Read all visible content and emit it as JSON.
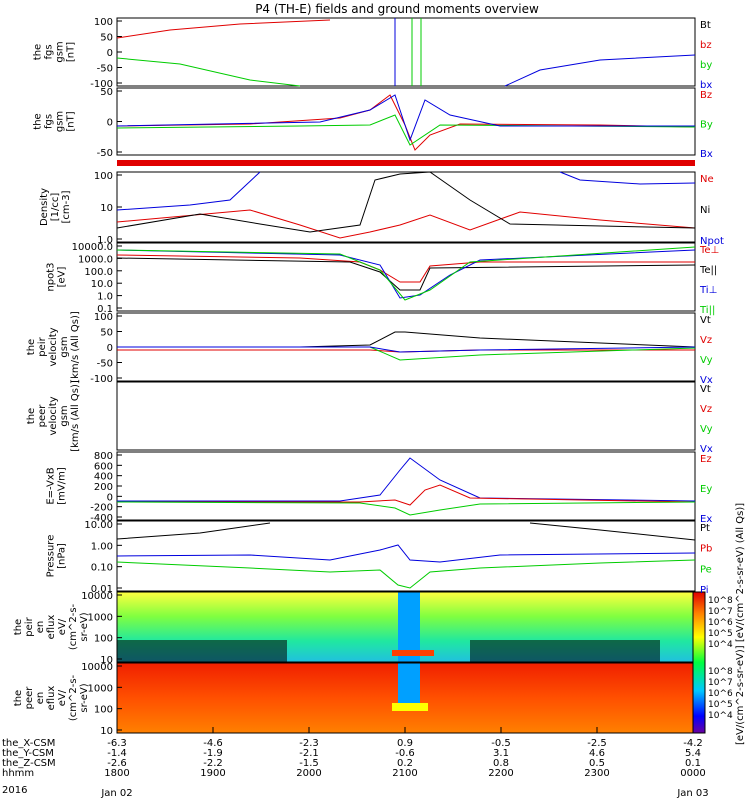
{
  "title": "P4 (TH-E) fields and ground moments overview",
  "year": "2016",
  "colors": {
    "black": "#000000",
    "red": "#e00000",
    "green": "#00cc00",
    "blue": "#0000dd"
  },
  "chart_data": [
    {
      "type": "line",
      "ylabel": [
        "the",
        "fgs",
        "gsm",
        "[nT]"
      ],
      "yticks": [
        "100",
        "50",
        "0",
        "-50",
        "-100"
      ],
      "legend": [
        {
          "name": "Bt",
          "color": "#000000"
        },
        {
          "name": "bz",
          "color": "#e00000"
        },
        {
          "name": "by",
          "color": "#00cc00"
        },
        {
          "name": "bx",
          "color": "#0000dd"
        }
      ]
    },
    {
      "type": "line",
      "ylabel": [
        "the",
        "fgs",
        "gsm",
        "[nT]"
      ],
      "yticks": [
        "50",
        "0",
        "-50"
      ],
      "legend": [
        {
          "name": "Bz",
          "color": "#e00000"
        },
        {
          "name": "By",
          "color": "#00cc00"
        },
        {
          "name": "Bx",
          "color": "#0000dd"
        }
      ]
    },
    {
      "type": "line",
      "ylabel": [
        "Density",
        "[1/cc]",
        "[cm-3]"
      ],
      "yticks": [
        "100",
        "10",
        "1.0"
      ],
      "log": true,
      "legend": [
        {
          "name": "Ne",
          "color": "#e00000"
        },
        {
          "name": "Ni",
          "color": "#000000"
        },
        {
          "name": "Npot",
          "color": "#0000dd"
        }
      ]
    },
    {
      "type": "line",
      "ylabel": [
        "npot3",
        "[eV]"
      ],
      "yticks": [
        "10000.0",
        "1000.0",
        "100.0",
        "10.0",
        "1.0",
        "0.1"
      ],
      "log": true,
      "legend": [
        {
          "name": "Te⊥",
          "color": "#e00000"
        },
        {
          "name": "Te||",
          "color": "#000000"
        },
        {
          "name": "Ti⊥",
          "color": "#0000dd"
        },
        {
          "name": "Ti||",
          "color": "#00cc00"
        }
      ]
    },
    {
      "type": "line",
      "ylabel": [
        "the",
        "peir",
        "velocity",
        "gsm",
        "[km/s (All Qs)]"
      ],
      "yticks": [
        "100",
        "50",
        "0",
        "-50",
        "-100"
      ],
      "legend": [
        {
          "name": "Vt",
          "color": "#000000"
        },
        {
          "name": "Vz",
          "color": "#e00000"
        },
        {
          "name": "Vy",
          "color": "#00cc00"
        },
        {
          "name": "Vx",
          "color": "#0000dd"
        }
      ]
    },
    {
      "type": "line",
      "ylabel": [
        "the",
        "peer",
        "velocity",
        "gsm",
        "[km/s (All Qs)]"
      ],
      "yticks": [],
      "legend": [
        {
          "name": "Vt",
          "color": "#000000"
        },
        {
          "name": "Vz",
          "color": "#e00000"
        },
        {
          "name": "Vy",
          "color": "#00cc00"
        },
        {
          "name": "Vx",
          "color": "#0000dd"
        }
      ]
    },
    {
      "type": "line",
      "ylabel": [
        "E=-VxB",
        "[mV/m]"
      ],
      "yticks": [
        "800",
        "600",
        "400",
        "200",
        "0",
        "-200",
        "-400"
      ],
      "legend": [
        {
          "name": "Ez",
          "color": "#e00000"
        },
        {
          "name": "Ey",
          "color": "#00cc00"
        },
        {
          "name": "Ex",
          "color": "#0000dd"
        }
      ]
    },
    {
      "type": "line",
      "ylabel": [
        "Pressure",
        "[nPa]"
      ],
      "yticks": [
        "10.00",
        "1.00",
        "0.10",
        "0.01"
      ],
      "log": true,
      "legend": [
        {
          "name": "Pt",
          "color": "#000000"
        },
        {
          "name": "Pb",
          "color": "#e00000"
        },
        {
          "name": "Pe",
          "color": "#00cc00"
        },
        {
          "name": "Pi",
          "color": "#0000dd"
        }
      ]
    },
    {
      "type": "heatmap",
      "ylabel": [
        "the",
        "peir",
        "en",
        "eflux",
        "eV/",
        "(cm^2-s-",
        "sr-eV)"
      ],
      "yticks": [
        "10000",
        "1000",
        "100",
        "10"
      ]
    },
    {
      "type": "heatmap",
      "ylabel": [
        "the",
        "peer",
        "en",
        "eflux",
        "eV/",
        "(cm^2-s-",
        "sr-eV)"
      ],
      "yticks": [
        "10000",
        "1000",
        "100",
        "10"
      ]
    }
  ],
  "colorbar": {
    "label": "[eV/(cm^2-s-sr-eV)] [eV/(cm^2-s-sr-eV) (All Qs)]",
    "ticks": [
      "10^8",
      "10^7",
      "10^6",
      "10^5",
      "10^4"
    ],
    "ticks2": [
      "10^8",
      "10^7",
      "10^6",
      "10^5",
      "10^4"
    ]
  },
  "xaxis": {
    "rows": [
      {
        "label": "the_X-CSM",
        "values": [
          "-6.3",
          "-4.6",
          "-2.3",
          "0.9",
          "-0.5",
          "-2.5",
          "-4.2"
        ]
      },
      {
        "label": "the_Y-CSM",
        "values": [
          "-1.4",
          "-1.9",
          "-2.1",
          "-0.6",
          "3.1",
          "4.6",
          "5.4"
        ]
      },
      {
        "label": "the_Z-CSM",
        "values": [
          "-2.6",
          "-2.2",
          "-1.5",
          "0.2",
          "0.8",
          "0.5",
          "0.1"
        ]
      },
      {
        "label": "hhmm",
        "values": [
          "1800",
          "1900",
          "2000",
          "2100",
          "2200",
          "2300",
          "0000"
        ]
      }
    ],
    "dates": {
      "start": "Jan 02",
      "end": "Jan 03"
    }
  }
}
